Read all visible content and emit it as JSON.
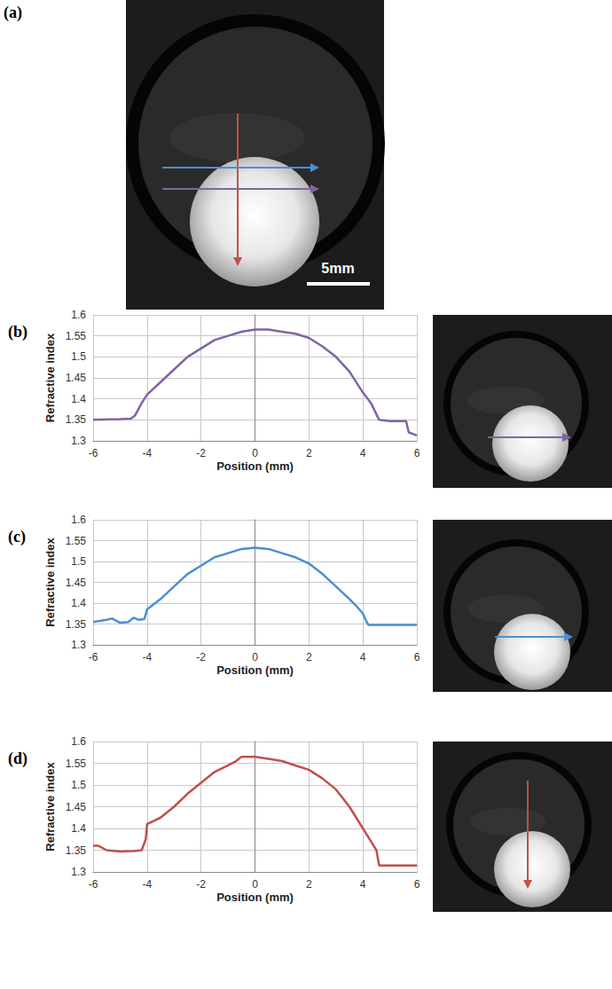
{
  "image_panel": {
    "label": "(a)",
    "scale_bar": "5mm"
  },
  "chart_data": [
    {
      "type": "line",
      "title": "(b)",
      "xlabel": "Position (mm)",
      "ylabel": "Refractive index",
      "color": "#8064a2",
      "x": [
        -6,
        -5,
        -4.6,
        -4.45,
        -4.2,
        -4,
        -3.5,
        -3,
        -2.5,
        -2,
        -1.5,
        -1,
        -0.5,
        0,
        0.5,
        1,
        1.5,
        2,
        2.5,
        3,
        3.5,
        4,
        4.3,
        4.6,
        5,
        5.6,
        5.7,
        6
      ],
      "values": [
        1.35,
        1.352,
        1.353,
        1.36,
        1.39,
        1.41,
        1.44,
        1.47,
        1.5,
        1.52,
        1.54,
        1.55,
        1.56,
        1.565,
        1.565,
        1.56,
        1.555,
        1.545,
        1.525,
        1.5,
        1.465,
        1.415,
        1.39,
        1.35,
        1.347,
        1.347,
        1.32,
        1.313
      ],
      "xlim": [
        -6,
        6
      ],
      "xticks": [
        -6,
        -4,
        -2,
        0,
        2,
        4,
        6
      ],
      "ylim": [
        1.3,
        1.6
      ],
      "yticks": [
        1.3,
        1.35,
        1.4,
        1.45,
        1.5,
        1.55,
        1.6
      ],
      "grid": true
    },
    {
      "type": "line",
      "title": "(c)",
      "xlabel": "Position (mm)",
      "ylabel": "Refractive index",
      "color": "#4a8fd4",
      "x": [
        -6,
        -5.5,
        -5.3,
        -5,
        -4.7,
        -4.5,
        -4.3,
        -4.1,
        -4,
        -3.5,
        -3,
        -2.5,
        -2,
        -1.5,
        -1,
        -0.5,
        0,
        0.5,
        1,
        1.5,
        2,
        2.5,
        3,
        3.5,
        3.8,
        4,
        4.1,
        4.2,
        5,
        6
      ],
      "values": [
        1.355,
        1.36,
        1.363,
        1.353,
        1.355,
        1.365,
        1.36,
        1.362,
        1.385,
        1.41,
        1.44,
        1.47,
        1.49,
        1.51,
        1.52,
        1.53,
        1.533,
        1.53,
        1.52,
        1.51,
        1.495,
        1.47,
        1.44,
        1.41,
        1.39,
        1.375,
        1.36,
        1.348,
        1.348,
        1.348
      ],
      "xlim": [
        -6,
        6
      ],
      "xticks": [
        -6,
        -4,
        -2,
        0,
        2,
        4,
        6
      ],
      "ylim": [
        1.3,
        1.6
      ],
      "yticks": [
        1.3,
        1.35,
        1.4,
        1.45,
        1.5,
        1.55,
        1.6
      ],
      "grid": true
    },
    {
      "type": "line",
      "title": "(d)",
      "xlabel": "Position (mm)",
      "ylabel": "Refractive index",
      "color": "#c0504d",
      "x": [
        -6,
        -5.8,
        -5.5,
        -5,
        -4.5,
        -4.2,
        -4.05,
        -4,
        -3.5,
        -3,
        -2.5,
        -2,
        -1.5,
        -1,
        -0.7,
        -0.5,
        0,
        0.5,
        1,
        1.5,
        2,
        2.5,
        3,
        3.5,
        4,
        4.3,
        4.5,
        4.6,
        6
      ],
      "values": [
        1.36,
        1.36,
        1.35,
        1.347,
        1.348,
        1.35,
        1.375,
        1.41,
        1.425,
        1.45,
        1.48,
        1.505,
        1.53,
        1.545,
        1.555,
        1.565,
        1.565,
        1.56,
        1.555,
        1.545,
        1.535,
        1.515,
        1.49,
        1.45,
        1.4,
        1.37,
        1.35,
        1.315,
        1.315
      ],
      "xlim": [
        -6,
        6
      ],
      "xticks": [
        -6,
        -4,
        -2,
        0,
        2,
        4,
        6
      ],
      "ylim": [
        1.3,
        1.6
      ],
      "yticks": [
        1.3,
        1.35,
        1.4,
        1.45,
        1.5,
        1.55,
        1.6
      ],
      "grid": true
    }
  ]
}
